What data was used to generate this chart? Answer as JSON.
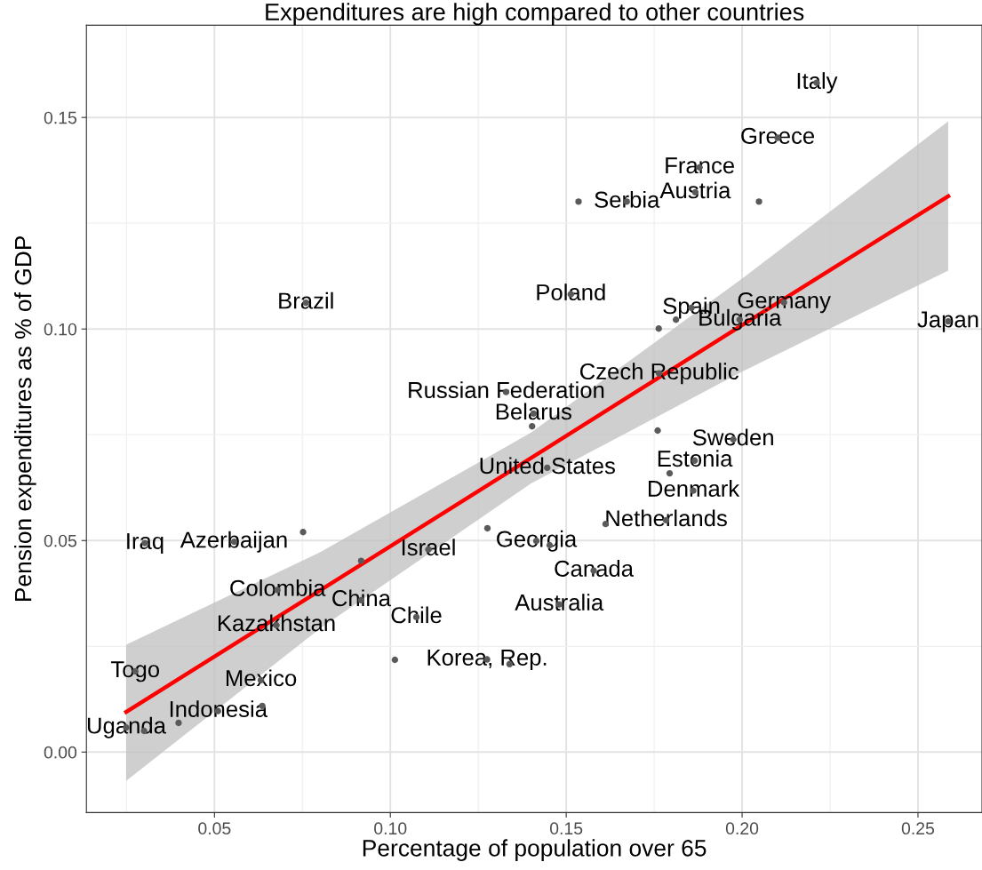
{
  "chart_data": {
    "type": "scatter",
    "title": "Expenditures are high compared to other countries",
    "xlabel": "Percentage of population over 65",
    "ylabel": "Pension expenditures as % of GDP",
    "xlim": [
      0.0136,
      0.2682
    ],
    "ylim": [
      -0.0143,
      0.1718
    ],
    "xticks": [
      {
        "value": 0.05,
        "label": "0.05"
      },
      {
        "value": 0.1,
        "label": "0.10"
      },
      {
        "value": 0.15,
        "label": "0.15"
      },
      {
        "value": 0.2,
        "label": "0.20"
      },
      {
        "value": 0.25,
        "label": "0.25"
      }
    ],
    "yticks": [
      {
        "value": 0.0,
        "label": "0.00"
      },
      {
        "value": 0.05,
        "label": "0.05"
      },
      {
        "value": 0.1,
        "label": "0.10"
      },
      {
        "value": 0.15,
        "label": "0.15"
      }
    ],
    "grid": true,
    "marker": "circle",
    "series": [
      {
        "type": "scatter",
        "color": "#5a5a5a",
        "x": [
          0.2212,
          0.2101,
          0.1879,
          0.1867,
          0.1535,
          0.1672,
          0.2048,
          0.1513,
          0.1856,
          0.1812,
          0.1763,
          0.1993,
          0.2119,
          0.2586,
          0.1764,
          0.1329,
          0.1407,
          0.1403,
          0.176,
          0.1975,
          0.1865,
          0.1794,
          0.1861,
          0.1446,
          0.1612,
          0.1784,
          0.1276,
          0.1415,
          0.1453,
          0.1108,
          0.076,
          0.0302,
          0.0556,
          0.0752,
          0.0917,
          0.0679,
          0.0917,
          0.0676,
          0.0275,
          0.0632,
          0.0636,
          0.051,
          0.0398,
          0.03,
          0.0249,
          0.1074,
          0.1013,
          0.1275,
          0.1339,
          0.1578,
          0.148
        ],
        "values": [
          0.1582,
          0.1452,
          0.1382,
          0.1323,
          0.1301,
          0.1301,
          0.1301,
          0.1082,
          0.105,
          0.1022,
          0.1001,
          0.1022,
          0.1063,
          0.1018,
          0.0895,
          0.0851,
          0.08,
          0.077,
          0.076,
          0.0739,
          0.0689,
          0.0659,
          0.0618,
          0.0672,
          0.0539,
          0.0548,
          0.0529,
          0.0499,
          0.0489,
          0.0479,
          0.1062,
          0.0494,
          0.0497,
          0.052,
          0.0452,
          0.0383,
          0.0359,
          0.03,
          0.0191,
          0.017,
          0.0109,
          0.0097,
          0.0069,
          0.005,
          0.0058,
          0.0319,
          0.0218,
          0.0219,
          0.0208,
          0.0429,
          0.0349
        ]
      },
      {
        "type": "line",
        "marker": "none",
        "color": "#ff0000",
        "x": [
          0.0249,
          0.08,
          0.14,
          0.2,
          0.2586
        ],
        "values": [
          0.0095,
          0.0382,
          0.0695,
          0.1009,
          0.1314
        ],
        "lower": [
          -0.0068,
          0.0292,
          0.0635,
          0.0899,
          0.1138
        ],
        "upper": [
          0.0254,
          0.0472,
          0.0755,
          0.1119,
          0.1491
        ]
      }
    ],
    "annotations": [
      {
        "text": "Italy",
        "x": 0.2212,
        "y": 0.1582
      },
      {
        "text": "Greece",
        "x": 0.2101,
        "y": 0.1452
      },
      {
        "text": "France",
        "x": 0.1879,
        "y": 0.1382
      },
      {
        "text": "Austria",
        "x": 0.1867,
        "y": 0.1323
      },
      {
        "text": "Serbia",
        "x": 0.1672,
        "y": 0.1301
      },
      {
        "text": "Poland",
        "x": 0.1513,
        "y": 0.1082
      },
      {
        "text": "Spain",
        "x": 0.1856,
        "y": 0.105
      },
      {
        "text": "Bulgaria",
        "x": 0.1993,
        "y": 0.1022
      },
      {
        "text": "Germany",
        "x": 0.2119,
        "y": 0.1063
      },
      {
        "text": "Japan",
        "x": 0.2586,
        "y": 0.1018
      },
      {
        "text": "Czech Republic",
        "x": 0.1764,
        "y": 0.0895
      },
      {
        "text": "Russian Federation",
        "x": 0.1329,
        "y": 0.0851
      },
      {
        "text": "Belarus",
        "x": 0.1407,
        "y": 0.08
      },
      {
        "text": "Sweden",
        "x": 0.1975,
        "y": 0.0739
      },
      {
        "text": "Estonia",
        "x": 0.1865,
        "y": 0.0689
      },
      {
        "text": "Denmark",
        "x": 0.1861,
        "y": 0.0618
      },
      {
        "text": "United States",
        "x": 0.1446,
        "y": 0.0672
      },
      {
        "text": "Netherlands",
        "x": 0.1784,
        "y": 0.0548
      },
      {
        "text": "Georgia",
        "x": 0.1415,
        "y": 0.0499
      },
      {
        "text": "Israel",
        "x": 0.1108,
        "y": 0.0479
      },
      {
        "text": "Brazil",
        "x": 0.076,
        "y": 0.1062
      },
      {
        "text": "Iraq",
        "x": 0.0302,
        "y": 0.0494
      },
      {
        "text": "Azerbaijan",
        "x": 0.0556,
        "y": 0.0497
      },
      {
        "text": "Colombia",
        "x": 0.0679,
        "y": 0.0383
      },
      {
        "text": "China",
        "x": 0.0917,
        "y": 0.0359
      },
      {
        "text": "Kazakhstan",
        "x": 0.0676,
        "y": 0.03
      },
      {
        "text": "Togo",
        "x": 0.0275,
        "y": 0.0191
      },
      {
        "text": "Mexico",
        "x": 0.0632,
        "y": 0.017
      },
      {
        "text": "Indonesia",
        "x": 0.051,
        "y": 0.0097
      },
      {
        "text": "Uganda",
        "x": 0.0249,
        "y": 0.0058
      },
      {
        "text": "Chile",
        "x": 0.1074,
        "y": 0.0319
      },
      {
        "text": "Korea, Rep.",
        "x": 0.1275,
        "y": 0.0219
      },
      {
        "text": "Canada",
        "x": 0.1578,
        "y": 0.0429
      },
      {
        "text": "Australia",
        "x": 0.148,
        "y": 0.0349
      }
    ]
  }
}
